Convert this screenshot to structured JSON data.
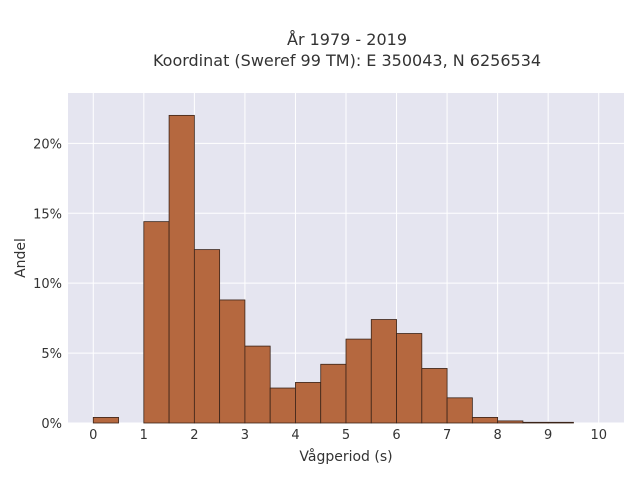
{
  "chart_data": {
    "type": "bar",
    "title": "År 1979 - 2019",
    "subtitle": "Koordinat (Sweref 99 TM): E 350043, N 6256534",
    "xlabel": "Vågperiod (s)",
    "ylabel": "Andel",
    "bin_width": 0.5,
    "bin_starts": [
      0,
      0.5,
      1,
      1.5,
      2,
      2.5,
      3,
      3.5,
      4,
      4.5,
      5,
      5.5,
      6,
      6.5,
      7,
      7.5,
      8,
      8.5,
      9,
      9.5
    ],
    "values": [
      0.4,
      0,
      14.4,
      22.0,
      12.4,
      8.8,
      5.5,
      2.5,
      2.9,
      4.2,
      6.0,
      7.4,
      6.4,
      3.9,
      1.8,
      0.4,
      0.15,
      0.05,
      0.05,
      0
    ],
    "xlim": [
      -0.5,
      10.5
    ],
    "ylim": [
      0,
      23.6
    ],
    "xticks": [
      0,
      1,
      2,
      3,
      4,
      5,
      6,
      7,
      8,
      9,
      10
    ],
    "xtick_labels": [
      "0",
      "1",
      "2",
      "3",
      "4",
      "5",
      "6",
      "7",
      "8",
      "9",
      "10"
    ],
    "yticks": [
      0,
      5,
      10,
      15,
      20
    ],
    "ytick_labels": [
      "0%",
      "5%",
      "10%",
      "15%",
      "20%"
    ],
    "grid": true,
    "colors": {
      "bar_fill": "#b5683f",
      "bar_edge": "#3a2318",
      "plot_bg": "#e5e5f0",
      "grid": "#ffffff",
      "text": "#333333"
    }
  }
}
